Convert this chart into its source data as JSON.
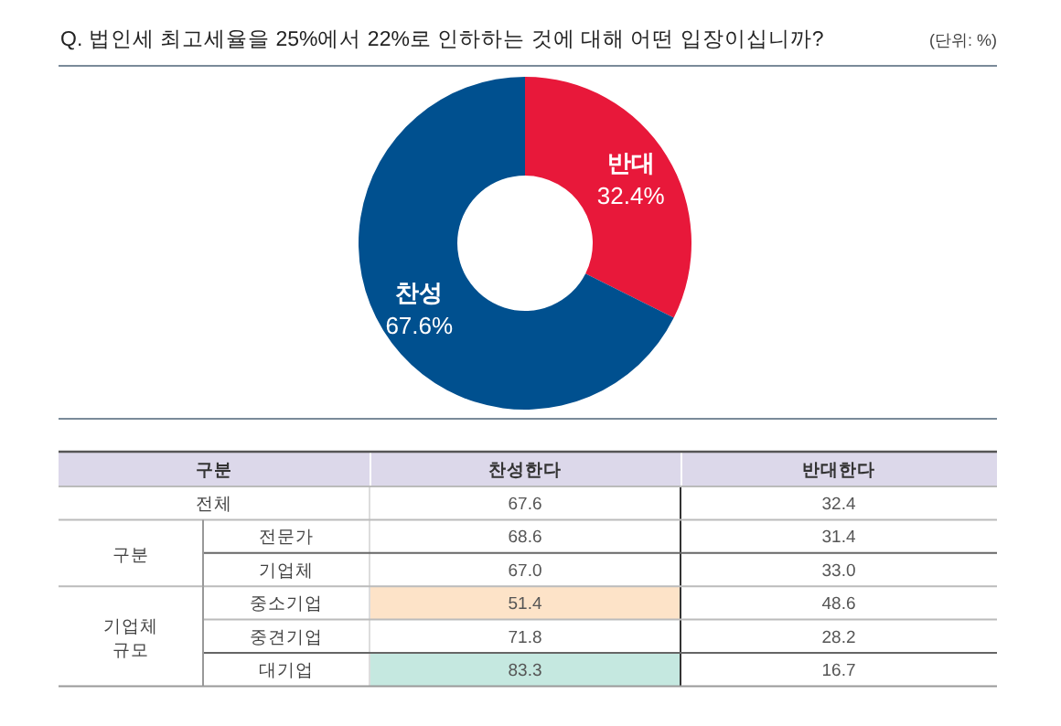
{
  "chart_data": [
    {
      "type": "donut",
      "title": "Q. 법인세 최고세율을 25%에서 22%로 인하하는 것에 대해 어떤 입장이십니까?",
      "annotations": [
        "(단위: %)"
      ],
      "categories": [
        "반대",
        "찬성"
      ],
      "values": [
        32.4,
        67.6
      ],
      "colors": [
        "#e8183a",
        "#00508f"
      ],
      "value_labels": [
        "32.4%",
        "67.6%"
      ]
    },
    {
      "type": "heatmap",
      "categories": [
        "찬성한다",
        "반대한다"
      ],
      "y_categories": [
        "전체",
        "전문가",
        "기업체",
        "중소기업",
        "중견기업",
        "대기업"
      ],
      "annotations": [
        "구분",
        "구분",
        "기업체 규모"
      ],
      "cells": [
        [
          67.6,
          32.4
        ],
        [
          68.6,
          31.4
        ],
        [
          67.0,
          33.0
        ],
        [
          51.4,
          48.6
        ],
        [
          71.8,
          28.2
        ],
        [
          83.3,
          16.7
        ]
      ],
      "cell_labels": [
        [
          "67.6",
          "32.4"
        ],
        [
          "68.6",
          "31.4"
        ],
        [
          "67.0",
          "33.0"
        ],
        [
          "51.4",
          "48.6"
        ],
        [
          "71.8",
          "28.2"
        ],
        [
          "83.3",
          "16.7"
        ]
      ],
      "colors": [
        [
          null,
          null
        ],
        [
          null,
          null
        ],
        [
          null,
          null
        ],
        [
          "#fde3c8",
          null
        ],
        [
          null,
          null
        ],
        [
          "#c5e8e0",
          null
        ]
      ]
    }
  ]
}
